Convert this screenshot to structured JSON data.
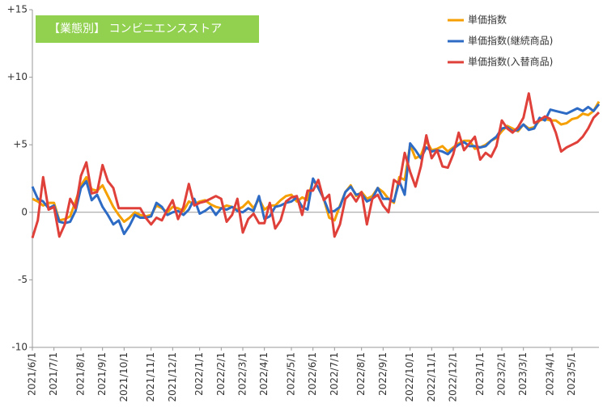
{
  "chart_data": {
    "type": "line",
    "title": "【業態別】 コンビニエンスストア",
    "categories": [
      "2021/6/1",
      null,
      null,
      null,
      "2021/7/1",
      null,
      null,
      null,
      null,
      "2021/8/1",
      null,
      null,
      null,
      "2021/9/1",
      null,
      null,
      null,
      "2021/10/1",
      null,
      null,
      null,
      null,
      "2021/11/1",
      null,
      null,
      null,
      "2021/12/1",
      null,
      null,
      null,
      null,
      "2022/1/1",
      null,
      null,
      null,
      "2022/2/1",
      null,
      null,
      null,
      "2022/3/1",
      null,
      null,
      null,
      "2022/4/1",
      null,
      null,
      null,
      null,
      "2022/5/1",
      null,
      null,
      null,
      "2022/6/1",
      null,
      null,
      null,
      "2022/7/1",
      null,
      null,
      null,
      null,
      "2022/8/1",
      null,
      null,
      null,
      "2022/9/1",
      null,
      null,
      null,
      null,
      "2022/10/1",
      null,
      null,
      null,
      "2022/11/1",
      null,
      null,
      null,
      "2022/12/1",
      null,
      null,
      null,
      null,
      "2023/1/1",
      null,
      null,
      null,
      "2023/2/1",
      null,
      null,
      null,
      "2023/3/1",
      null,
      null,
      null,
      null,
      "2023/4/1",
      null,
      null,
      null,
      "2023/5/1",
      null,
      null,
      null,
      null,
      null
    ],
    "series": [
      {
        "name": "単価指数",
        "color": "#f5a000",
        "values": [
          1.0,
          0.8,
          0.5,
          0.7,
          0.7,
          -0.6,
          -0.5,
          -0.3,
          0.8,
          2.0,
          2.6,
          1.7,
          1.6,
          2.0,
          1.2,
          0.4,
          -0.2,
          -0.7,
          -0.4,
          0.0,
          -0.2,
          -0.3,
          -0.2,
          0.5,
          0.3,
          0.0,
          0.4,
          0.3,
          0.1,
          0.8,
          0.6,
          0.8,
          0.9,
          0.6,
          0.4,
          0.3,
          0.5,
          0.4,
          0.2,
          0.4,
          0.8,
          0.3,
          1.0,
          0.2,
          0.5,
          0.5,
          0.9,
          1.2,
          1.3,
          0.8,
          1.1,
          0.9,
          2.4,
          1.8,
          1.0,
          -0.4,
          -0.6,
          0.5,
          1.5,
          2.0,
          1.2,
          1.5,
          1.0,
          1.2,
          1.8,
          1.5,
          1.0,
          0.7,
          2.6,
          2.4,
          5.0,
          4.0,
          4.2,
          5.3,
          4.6,
          4.7,
          4.9,
          4.5,
          4.8,
          5.1,
          5.3,
          5.3,
          4.7,
          4.8,
          5.0,
          5.3,
          5.5,
          6.0,
          6.4,
          6.2,
          6.0,
          6.5,
          6.2,
          6.3,
          6.8,
          6.9,
          6.8,
          6.8,
          6.5,
          6.6,
          6.9,
          7.0,
          7.3,
          7.2,
          7.5,
          8.2
        ]
      },
      {
        "name": "単価指数(継続商品)",
        "color": "#2e6bc4",
        "values": [
          1.9,
          1.0,
          0.8,
          0.3,
          0.5,
          -0.7,
          -0.8,
          -0.7,
          0.1,
          1.8,
          2.3,
          0.9,
          1.3,
          0.4,
          -0.2,
          -0.9,
          -0.6,
          -1.6,
          -1.0,
          -0.2,
          -0.4,
          -0.4,
          -0.3,
          0.7,
          0.4,
          -0.2,
          0.0,
          0.1,
          -0.2,
          0.2,
          1.0,
          -0.1,
          0.1,
          0.4,
          -0.2,
          0.3,
          0.2,
          0.4,
          0.1,
          0.0,
          0.3,
          0.1,
          1.2,
          -0.5,
          -0.3,
          0.4,
          0.5,
          0.7,
          0.8,
          1.1,
          0.4,
          0.2,
          2.5,
          1.8,
          1.0,
          0.0,
          0.1,
          0.4,
          1.5,
          1.9,
          1.3,
          1.4,
          0.8,
          1.0,
          1.8,
          1.0,
          1.0,
          0.8,
          2.3,
          1.3,
          5.1,
          4.6,
          4.0,
          4.8,
          4.5,
          4.6,
          4.5,
          4.3,
          4.7,
          5.0,
          5.2,
          4.9,
          4.9,
          4.8,
          4.9,
          5.3,
          5.6,
          6.2,
          6.3,
          6.0,
          6.1,
          6.5,
          6.1,
          6.2,
          7.0,
          6.8,
          7.6,
          7.5,
          7.4,
          7.3,
          7.5,
          7.7,
          7.5,
          7.8,
          7.5,
          8.0
        ]
      },
      {
        "name": "単価指数(入替商品)",
        "color": "#e0403a",
        "values": [
          -1.9,
          -0.6,
          2.6,
          0.2,
          0.4,
          -1.8,
          -0.9,
          1.0,
          0.3,
          2.7,
          3.7,
          1.4,
          1.5,
          3.5,
          2.3,
          1.8,
          0.3,
          0.3,
          0.3,
          0.3,
          0.3,
          -0.4,
          -0.9,
          -0.4,
          -0.6,
          0.2,
          0.9,
          -0.5,
          0.4,
          2.1,
          0.5,
          0.7,
          0.8,
          1.0,
          1.2,
          1.0,
          -0.7,
          -0.2,
          1.0,
          -1.5,
          -0.5,
          -0.1,
          -0.8,
          -0.8,
          0.7,
          -1.2,
          -0.6,
          0.8,
          1.1,
          1.2,
          -0.2,
          1.6,
          1.6,
          2.4,
          0.9,
          1.3,
          -1.8,
          -0.9,
          1.0,
          1.4,
          0.8,
          1.5,
          -0.9,
          1.0,
          1.3,
          0.5,
          0.0,
          2.4,
          2.1,
          4.4,
          3.0,
          1.9,
          3.4,
          5.7,
          4.0,
          4.6,
          3.4,
          3.3,
          4.3,
          5.9,
          4.6,
          5.1,
          5.6,
          3.9,
          4.4,
          4.1,
          4.9,
          6.8,
          6.2,
          5.9,
          6.3,
          7.0,
          8.8,
          6.6,
          6.8,
          7.1,
          6.9,
          5.9,
          4.5,
          4.8,
          5.0,
          5.2,
          5.6,
          6.2,
          7.0,
          7.4
        ]
      }
    ],
    "ylim": [
      -10,
      15
    ],
    "yticks": [
      {
        "value": 15,
        "label": "+15"
      },
      {
        "value": 10,
        "label": "+10"
      },
      {
        "value": 5,
        "label": "+5"
      },
      0,
      -5,
      -10
    ],
    "grid": false
  }
}
